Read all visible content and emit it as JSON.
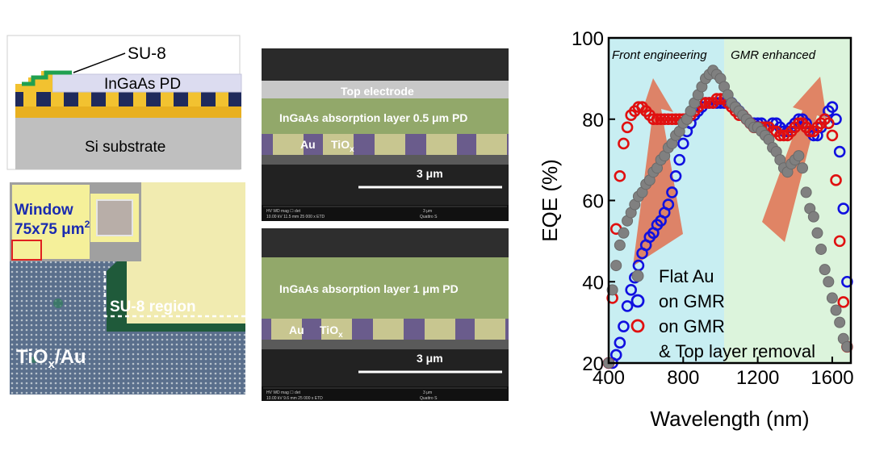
{
  "schematic": {
    "su8_label": "SU-8",
    "pd_label": "InGaAs PD",
    "substrate_label": "Si substrate"
  },
  "micrograph": {
    "window_line1": "Window",
    "window_line2": "75x75 μm",
    "window_sup": "2",
    "su8_region_label": "SU-8 region",
    "tiox_label_a": "TiO",
    "tiox_label_sub": "x",
    "tiox_label_b": "/Au"
  },
  "sem_top": {
    "top_electrode": "Top electrode",
    "layer_label": "InGaAs absorption layer 0.5 μm PD",
    "au": "Au",
    "tiox": "TiO",
    "tiox_sub": "x",
    "scale": "3 μm",
    "info_row1": "HV        WD        mag ☐      det",
    "info_row2": "10.00 kV   11.5 mm   25 000 x   ETD",
    "info_scale": "3 μm",
    "info_model": "Quattro S"
  },
  "sem_bottom": {
    "layer_label": "InGaAs absorption layer 1 μm PD",
    "au": "Au",
    "tiox": "TiO",
    "tiox_sub": "x",
    "scale": "3 μm",
    "info_row1": "HV        WD        mag ☐      det",
    "info_row2": "10.00 kV   9.6 mm   25 000 x   ETD",
    "info_scale": "3 μm",
    "info_model": "Quattro S"
  },
  "colors": {
    "flat_au": "#808080",
    "gmr": "#1010e0",
    "gmr_removal": "#e01010",
    "region_left": "#c8eef2",
    "region_right": "#dcf4dc",
    "arrow": "#e07050"
  },
  "chart_data": {
    "type": "scatter",
    "xlabel": "Wavelength (nm)",
    "ylabel": "EQE (%)",
    "xlim": [
      400,
      1700
    ],
    "ylim": [
      20,
      100
    ],
    "xticks": [
      "400",
      "800",
      "1200",
      "1600"
    ],
    "yticks": [
      "20",
      "40",
      "60",
      "80",
      "100"
    ],
    "annotations": [
      "Front engineering",
      "GMR enhanced"
    ],
    "legend_position": "bottom-left",
    "series": [
      {
        "name": "Flat Au",
        "x": [
          400,
          420,
          440,
          460,
          480,
          500,
          520,
          540,
          560,
          580,
          600,
          620,
          640,
          660,
          680,
          700,
          720,
          740,
          760,
          780,
          800,
          820,
          840,
          860,
          880,
          900,
          920,
          940,
          960,
          980,
          1000,
          1020,
          1040,
          1060,
          1080,
          1100,
          1120,
          1140,
          1160,
          1180,
          1200,
          1220,
          1240,
          1260,
          1280,
          1300,
          1320,
          1340,
          1360,
          1380,
          1400,
          1420,
          1440,
          1460,
          1480,
          1500,
          1520,
          1540,
          1560,
          1580,
          1600,
          1620,
          1640,
          1660,
          1680
        ],
        "y": [
          20,
          38,
          44,
          49,
          52,
          55,
          57,
          59,
          61,
          62,
          64,
          65,
          67,
          68,
          70,
          71,
          73,
          74,
          76,
          77,
          79,
          80,
          82,
          84,
          86,
          88,
          90,
          91,
          92,
          91,
          90,
          88,
          86,
          84,
          83,
          82,
          81,
          80,
          79,
          78,
          78,
          77,
          76,
          75,
          73,
          72,
          70,
          68,
          67,
          69,
          70,
          71,
          68,
          62,
          58,
          56,
          52,
          48,
          43,
          40,
          36,
          33,
          30,
          26,
          24
        ]
      },
      {
        "name": "on GMR",
        "x": [
          400,
          420,
          440,
          460,
          480,
          500,
          520,
          540,
          560,
          580,
          600,
          620,
          640,
          660,
          680,
          700,
          720,
          740,
          760,
          780,
          800,
          820,
          840,
          860,
          880,
          900,
          920,
          940,
          960,
          980,
          1000,
          1020,
          1040,
          1060,
          1080,
          1100,
          1120,
          1140,
          1160,
          1180,
          1200,
          1220,
          1240,
          1260,
          1280,
          1300,
          1320,
          1340,
          1360,
          1380,
          1400,
          1420,
          1440,
          1460,
          1480,
          1500,
          1520,
          1540,
          1560,
          1580,
          1600,
          1620,
          1640,
          1660,
          1680
        ],
        "y": [
          20,
          20,
          22,
          25,
          29,
          34,
          38,
          41,
          44,
          47,
          49,
          51,
          52,
          54,
          55,
          57,
          59,
          62,
          66,
          70,
          74,
          77,
          79,
          81,
          82,
          83,
          84,
          84,
          84,
          84,
          84,
          84,
          84,
          84,
          83,
          82,
          81,
          80,
          79,
          79,
          79,
          79,
          78,
          78,
          79,
          79,
          78,
          77,
          77,
          78,
          79,
          80,
          80,
          79,
          77,
          76,
          76,
          78,
          80,
          82,
          83,
          80,
          72,
          58,
          40
        ]
      },
      {
        "name": "on GMR\n& Top layer removal",
        "x": [
          400,
          420,
          440,
          460,
          480,
          500,
          520,
          540,
          560,
          580,
          600,
          620,
          640,
          660,
          680,
          700,
          720,
          740,
          760,
          780,
          800,
          820,
          840,
          860,
          880,
          900,
          920,
          940,
          960,
          980,
          1000,
          1020,
          1040,
          1060,
          1080,
          1100,
          1120,
          1140,
          1160,
          1180,
          1200,
          1220,
          1240,
          1260,
          1280,
          1300,
          1320,
          1340,
          1360,
          1380,
          1400,
          1420,
          1440,
          1460,
          1480,
          1500,
          1520,
          1540,
          1560,
          1580,
          1600,
          1620,
          1640,
          1660,
          1680
        ],
        "y": [
          20,
          36,
          53,
          66,
          74,
          78,
          81,
          82,
          83,
          83,
          82,
          81,
          80,
          80,
          80,
          80,
          80,
          80,
          80,
          80,
          80,
          80,
          81,
          82,
          83,
          84,
          84,
          84,
          84,
          85,
          85,
          85,
          84,
          83,
          82,
          81,
          81,
          80,
          79,
          78,
          78,
          78,
          78,
          78,
          77,
          77,
          76,
          76,
          76,
          77,
          78,
          79,
          79,
          78,
          77,
          77,
          78,
          79,
          80,
          79,
          76,
          65,
          50,
          35,
          24
        ]
      }
    ]
  }
}
